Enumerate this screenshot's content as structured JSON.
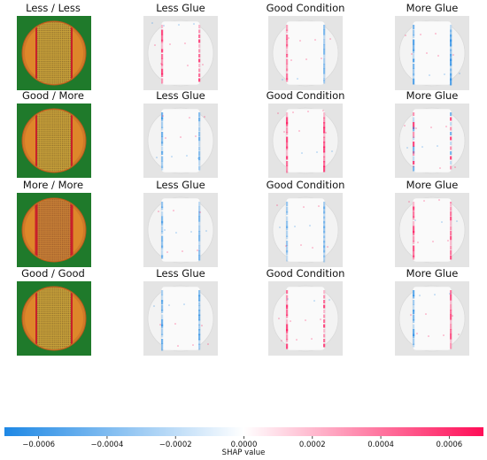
{
  "rows": [
    {
      "original_label": "Less / Less",
      "panel_labels": [
        "Less Glue",
        "Good Condition",
        "More Glue"
      ]
    },
    {
      "original_label": "Good / More",
      "panel_labels": [
        "Less Glue",
        "Good Condition",
        "More Glue"
      ]
    },
    {
      "original_label": "More / More",
      "panel_labels": [
        "Less Glue",
        "Good Condition",
        "More Glue"
      ]
    },
    {
      "original_label": "Good / Good",
      "panel_labels": [
        "Less Glue",
        "Good Condition",
        "More Glue"
      ]
    }
  ],
  "colors": {
    "negative": "#1e88e5",
    "neutral": "#ffffff",
    "positive": "#ff0d57",
    "pcb_green": "#1f7a2b",
    "pad_orange": "#e08a2a",
    "pad_red": "#c8202a"
  },
  "chart_data": {
    "type": "heatmap",
    "colorbar": {
      "label": "SHAP value",
      "vmin": -0.0007,
      "vmax": 0.0007,
      "ticks": [
        -0.0006,
        -0.0004,
        -0.0002,
        0.0,
        0.0002,
        0.0004,
        0.0006
      ],
      "tick_labels": [
        "−0.0006",
        "−0.0004",
        "−0.0002",
        "0.0000",
        "0.0002",
        "0.0004",
        "0.0006"
      ]
    },
    "panels": [
      {
        "row": 0,
        "col": 1,
        "title": "Less Glue",
        "left_edge": "pos",
        "right_edge": "pos",
        "strength": 0.8
      },
      {
        "row": 0,
        "col": 2,
        "title": "Good Condition",
        "left_edge": "pos",
        "right_edge": "neg",
        "strength": 0.5
      },
      {
        "row": 0,
        "col": 3,
        "title": "More Glue",
        "left_edge": "neg",
        "right_edge": "neg",
        "strength": 0.8
      },
      {
        "row": 1,
        "col": 1,
        "title": "Less Glue",
        "left_edge": "neg",
        "right_edge": "neg",
        "strength": 0.6
      },
      {
        "row": 1,
        "col": 2,
        "title": "Good Condition",
        "left_edge": "pos",
        "right_edge": "pos",
        "strength": 0.8
      },
      {
        "row": 1,
        "col": 3,
        "title": "More Glue",
        "left_edge": "mix",
        "right_edge": "mix",
        "strength": 0.8
      },
      {
        "row": 2,
        "col": 1,
        "title": "Less Glue",
        "left_edge": "neg",
        "right_edge": "neg",
        "strength": 0.5
      },
      {
        "row": 2,
        "col": 2,
        "title": "Good Condition",
        "left_edge": "neg",
        "right_edge": "neg",
        "strength": 0.3
      },
      {
        "row": 2,
        "col": 3,
        "title": "More Glue",
        "left_edge": "pos",
        "right_edge": "pos",
        "strength": 0.7
      },
      {
        "row": 3,
        "col": 1,
        "title": "Less Glue",
        "left_edge": "neg",
        "right_edge": "neg",
        "strength": 0.6
      },
      {
        "row": 3,
        "col": 2,
        "title": "Good Condition",
        "left_edge": "pos",
        "right_edge": "pos",
        "strength": 0.8
      },
      {
        "row": 3,
        "col": 3,
        "title": "More Glue",
        "left_edge": "neg",
        "right_edge": "pos",
        "strength": 0.7
      }
    ]
  }
}
